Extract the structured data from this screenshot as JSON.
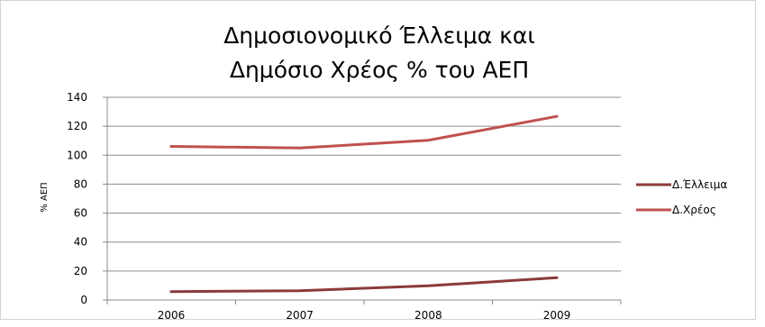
{
  "chart_data": {
    "type": "line",
    "title_lines": [
      "Δημοσιονομικό Έλλειμα και",
      "Δημόσιο Χρέος % του ΑΕΠ"
    ],
    "xlabel": "",
    "ylabel": "% ΑΕΠ",
    "categories": [
      "2006",
      "2007",
      "2008",
      "2009"
    ],
    "ylim": [
      0,
      140
    ],
    "yticks": [
      "0",
      "20",
      "40",
      "60",
      "80",
      "100",
      "120",
      "140"
    ],
    "grid": true,
    "legend_position": "right",
    "series": [
      {
        "name": "Δ.Έλλειμα",
        "color": "#8b3a3a",
        "values": [
          5.7,
          6.4,
          9.8,
          15.4
        ]
      },
      {
        "name": "Δ.Χρέος",
        "color": "#c0504d",
        "values": [
          106.1,
          105.0,
          110.3,
          126.8
        ]
      }
    ]
  }
}
